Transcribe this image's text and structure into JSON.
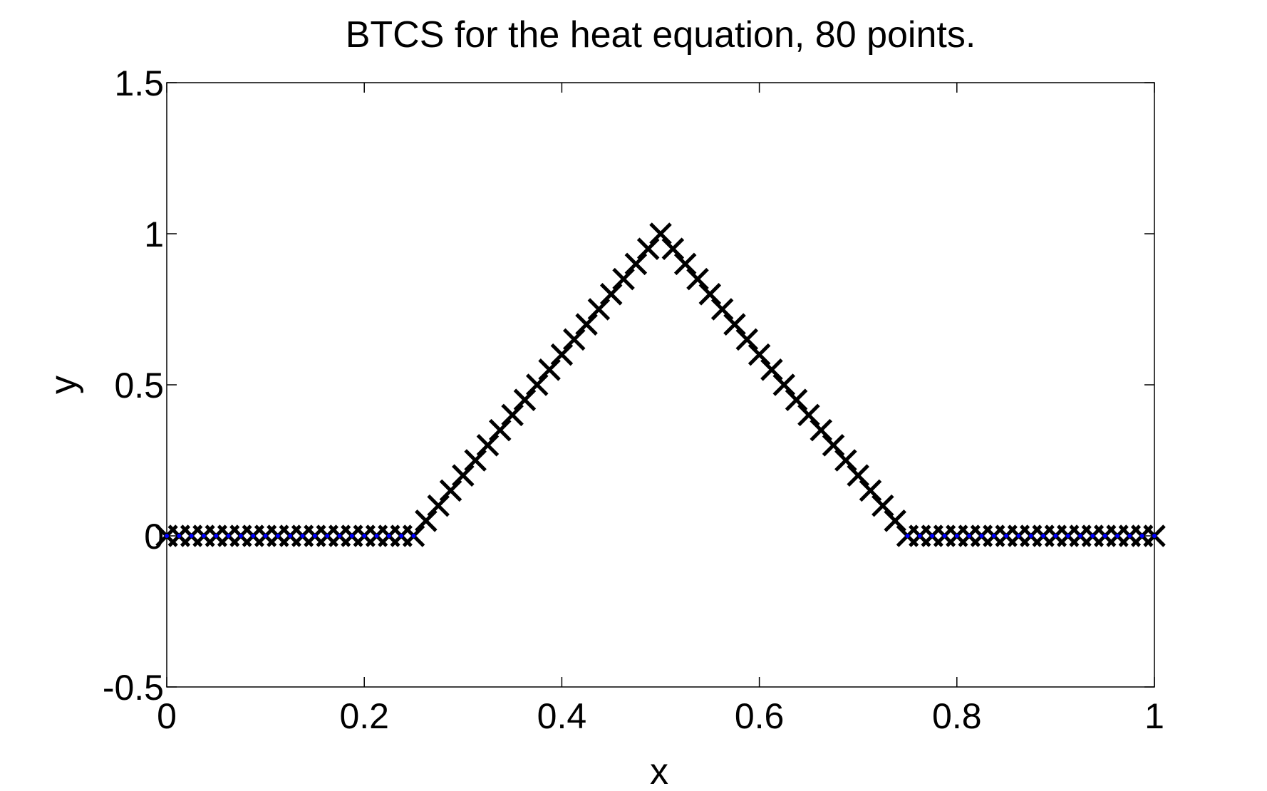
{
  "chart_data": {
    "type": "scatter",
    "title": "BTCS for the heat equation, 80 points.",
    "xlabel": "x",
    "ylabel": "y",
    "xlim": [
      0,
      1
    ],
    "ylim": [
      -0.5,
      1.5
    ],
    "xticks": [
      0,
      0.2,
      0.4,
      0.6,
      0.8,
      1
    ],
    "xtick_labels": [
      "0",
      "0.2",
      "0.4",
      "0.6",
      "0.8",
      "1"
    ],
    "yticks": [
      -0.5,
      0,
      0.5,
      1,
      1.5
    ],
    "ytick_labels": [
      "-0.5",
      "0",
      "0.5",
      "1",
      "1.5"
    ],
    "grid": false,
    "legend": "none",
    "series": [
      {
        "marker": "x",
        "color": "#000000",
        "x": [
          0.0,
          0.0125,
          0.025,
          0.0375,
          0.05,
          0.0625,
          0.075,
          0.0875,
          0.1,
          0.1125,
          0.125,
          0.1375,
          0.15,
          0.1625,
          0.175,
          0.1875,
          0.2,
          0.2125,
          0.225,
          0.2375,
          0.25,
          0.2625,
          0.275,
          0.2875,
          0.3,
          0.3125,
          0.325,
          0.3375,
          0.35,
          0.3625,
          0.375,
          0.3875,
          0.4,
          0.4125,
          0.425,
          0.4375,
          0.45,
          0.4625,
          0.475,
          0.4875,
          0.5,
          0.5125,
          0.525,
          0.5375,
          0.55,
          0.5625,
          0.575,
          0.5875,
          0.6,
          0.6125,
          0.625,
          0.6375,
          0.65,
          0.6625,
          0.675,
          0.6875,
          0.7,
          0.7125,
          0.725,
          0.7375,
          0.75,
          0.7625,
          0.775,
          0.7875,
          0.8,
          0.8125,
          0.825,
          0.8375,
          0.85,
          0.8625,
          0.875,
          0.8875,
          0.9,
          0.9125,
          0.925,
          0.9375,
          0.95,
          0.9625,
          0.975,
          0.9875,
          1.0
        ],
        "y": [
          0,
          0,
          0,
          0,
          0,
          0,
          0,
          0,
          0,
          0,
          0,
          0,
          0,
          0,
          0,
          0,
          0,
          0,
          0,
          0,
          0,
          0.05,
          0.1,
          0.15,
          0.2,
          0.25,
          0.3,
          0.35,
          0.4,
          0.45,
          0.5,
          0.55,
          0.6,
          0.65,
          0.7,
          0.75,
          0.8,
          0.85,
          0.9,
          0.95,
          1.0,
          0.95,
          0.9,
          0.85,
          0.8,
          0.75,
          0.7,
          0.65,
          0.6,
          0.55,
          0.5,
          0.45,
          0.4,
          0.35,
          0.3,
          0.25,
          0.2,
          0.15,
          0.1,
          0.05,
          0,
          0,
          0,
          0,
          0,
          0,
          0,
          0,
          0,
          0,
          0,
          0,
          0,
          0,
          0,
          0,
          0,
          0,
          0,
          0,
          0
        ]
      },
      {
        "marker": "dot",
        "color": "#0000ff",
        "x": [
          0.0,
          0.0125,
          0.025,
          0.0375,
          0.05,
          0.0625,
          0.075,
          0.0875,
          0.1,
          0.1125,
          0.125,
          0.1375,
          0.15,
          0.1625,
          0.175,
          0.1875,
          0.2,
          0.2125,
          0.225,
          0.2375,
          0.25,
          0.75,
          0.7625,
          0.775,
          0.7875,
          0.8,
          0.8125,
          0.825,
          0.8375,
          0.85,
          0.8625,
          0.875,
          0.8875,
          0.9,
          0.9125,
          0.925,
          0.9375,
          0.95,
          0.9625,
          0.975,
          0.9875,
          1.0
        ],
        "y": [
          0,
          0,
          0,
          0,
          0,
          0,
          0,
          0,
          0,
          0,
          0,
          0,
          0,
          0,
          0,
          0,
          0,
          0,
          0,
          0,
          0,
          0,
          0,
          0,
          0,
          0,
          0,
          0,
          0,
          0,
          0,
          0,
          0,
          0,
          0,
          0,
          0,
          0,
          0,
          0,
          0,
          0
        ]
      }
    ]
  }
}
